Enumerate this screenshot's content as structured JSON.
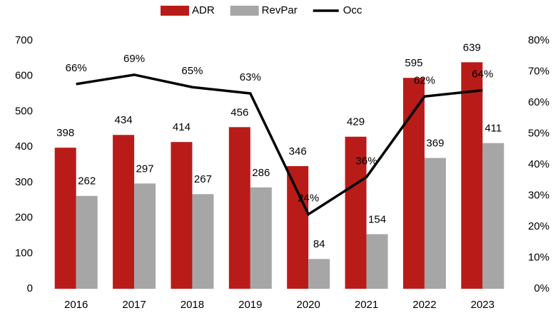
{
  "chart_data": {
    "type": "bar",
    "categories": [
      "2016",
      "2017",
      "2018",
      "2019",
      "2020",
      "2021",
      "2022",
      "2023"
    ],
    "series": [
      {
        "name": "ADR",
        "color": "#b91c18",
        "values": [
          398,
          434,
          414,
          456,
          346,
          429,
          595,
          639
        ]
      },
      {
        "name": "RevPar",
        "color": "#a6a6a6",
        "values": [
          262,
          297,
          267,
          286,
          84,
          154,
          369,
          411
        ]
      },
      {
        "name": "Occ",
        "color": "#000000",
        "type": "line",
        "axis": "y2",
        "values": [
          66,
          69,
          65,
          63,
          24,
          36,
          62,
          64
        ],
        "value_labels": [
          "66%",
          "69%",
          "65%",
          "63%",
          "24%",
          "36%",
          "62%",
          "64%"
        ]
      }
    ],
    "ylim": [
      0,
      700
    ],
    "yticks": [
      0,
      100,
      200,
      300,
      400,
      500,
      600,
      700
    ],
    "y2lim": [
      0,
      80
    ],
    "y2ticks": [
      {
        "value": 0,
        "label": "0%"
      },
      {
        "value": 10,
        "label": "10%"
      },
      {
        "value": 20,
        "label": "20%"
      },
      {
        "value": 30,
        "label": "30%"
      },
      {
        "value": 40,
        "label": "40%"
      },
      {
        "value": 50,
        "label": "50%"
      },
      {
        "value": 60,
        "label": "60%"
      },
      {
        "value": 70,
        "label": "70%"
      },
      {
        "value": 80,
        "label": "80%"
      }
    ],
    "legend": "top",
    "grid": false
  }
}
